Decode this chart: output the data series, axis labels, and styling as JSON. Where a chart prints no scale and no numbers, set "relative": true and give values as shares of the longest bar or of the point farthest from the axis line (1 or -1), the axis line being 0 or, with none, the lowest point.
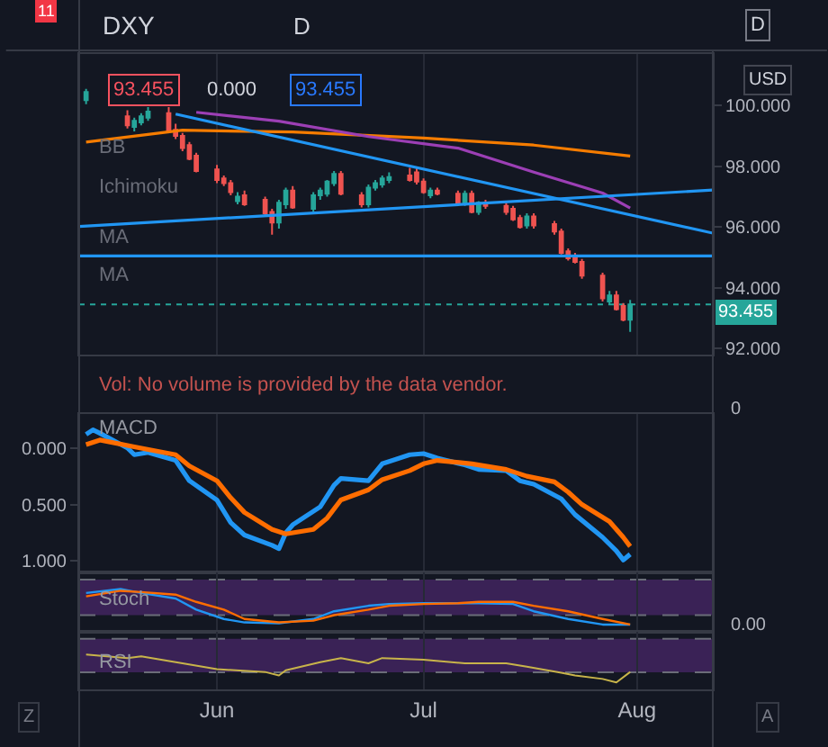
{
  "chart_data": [
    {
      "type": "candlestick",
      "title": "DXY",
      "ylabel": "USD",
      "x": [
        "--05-13",
        "--05-19",
        "--05-20",
        "--05-21",
        "--05-22",
        "--05-25",
        "--05-26",
        "--05-27",
        "--05-28",
        "--05-29",
        "--06-01",
        "--06-02",
        "--06-03",
        "--06-04",
        "--06-05",
        "--06-08",
        "--06-09",
        "--06-10",
        "--06-11",
        "--06-12",
        "--06-15",
        "--06-16",
        "--06-17",
        "--06-18",
        "--06-19",
        "--06-22",
        "--06-23",
        "--06-24",
        "--06-25",
        "--06-26",
        "--06-29",
        "--06-30",
        "--07-01",
        "--07-02",
        "--07-03",
        "--07-06",
        "--07-07",
        "--07-08",
        "--07-09",
        "--07-10",
        "--07-13",
        "--07-14",
        "--07-15",
        "--07-16",
        "--07-17",
        "--07-20",
        "--07-21",
        "--07-22",
        "--07-23",
        "--07-24",
        "--07-27",
        "--07-28",
        "--07-29",
        "--07-30",
        "--07-31"
      ],
      "ohlc": [
        [
          100.18,
          100.55,
          100.05,
          100.45
        ],
        [
          99.65,
          99.85,
          99.25,
          99.35
        ],
        [
          99.3,
          99.6,
          99.15,
          99.5
        ],
        [
          99.45,
          99.75,
          99.35,
          99.65
        ],
        [
          99.6,
          99.95,
          99.5,
          99.8
        ],
        [
          99.75,
          99.95,
          99.1,
          99.15
        ],
        [
          99.2,
          99.4,
          98.9,
          99.0
        ],
        [
          99.0,
          99.1,
          98.5,
          98.6
        ],
        [
          98.7,
          98.8,
          98.2,
          98.25
        ],
        [
          98.35,
          98.45,
          97.8,
          97.85
        ],
        [
          97.9,
          98.05,
          97.45,
          97.55
        ],
        [
          97.6,
          97.7,
          97.35,
          97.45
        ],
        [
          97.45,
          97.55,
          97.05,
          97.15
        ],
        [
          96.85,
          97.15,
          96.75,
          97.0
        ],
        [
          97.05,
          97.2,
          96.7,
          96.75
        ],
        [
          96.9,
          97.0,
          96.4,
          96.45
        ],
        [
          96.5,
          96.6,
          95.75,
          96.15
        ],
        [
          96.15,
          96.9,
          95.95,
          96.8
        ],
        [
          96.75,
          97.3,
          96.6,
          97.2
        ],
        [
          97.2,
          97.35,
          96.6,
          96.65
        ],
        [
          96.6,
          97.15,
          96.5,
          97.05
        ],
        [
          97.05,
          97.3,
          96.9,
          97.2
        ],
        [
          97.1,
          97.55,
          97.0,
          97.5
        ],
        [
          97.45,
          97.85,
          97.35,
          97.75
        ],
        [
          97.75,
          97.85,
          97.05,
          97.1
        ],
        [
          97.05,
          97.15,
          96.65,
          96.75
        ],
        [
          96.75,
          97.4,
          96.65,
          97.3
        ],
        [
          97.3,
          97.55,
          97.2,
          97.45
        ],
        [
          97.4,
          97.7,
          97.3,
          97.6
        ],
        [
          97.55,
          97.8,
          97.45,
          97.65
        ],
        [
          97.7,
          97.95,
          97.5,
          97.55
        ],
        [
          97.8,
          97.95,
          97.4,
          97.5
        ],
        [
          97.5,
          97.6,
          97.1,
          97.15
        ],
        [
          97.05,
          97.3,
          96.95,
          97.2
        ],
        [
          97.2,
          97.3,
          97.05,
          97.1
        ],
        [
          97.1,
          97.2,
          96.7,
          96.8
        ],
        [
          96.8,
          97.2,
          96.7,
          97.1
        ],
        [
          97.1,
          97.2,
          96.45,
          96.5
        ],
        [
          96.5,
          96.85,
          96.4,
          96.8
        ],
        [
          96.8,
          96.9,
          96.6,
          96.7
        ],
        [
          96.7,
          96.8,
          96.4,
          96.5
        ],
        [
          96.6,
          96.7,
          96.2,
          96.25
        ],
        [
          96.3,
          96.4,
          95.95,
          96.0
        ],
        [
          96.05,
          96.45,
          95.95,
          96.35
        ],
        [
          96.35,
          96.45,
          95.95,
          96.05
        ],
        [
          96.1,
          96.2,
          95.75,
          95.85
        ],
        [
          95.85,
          95.95,
          95.1,
          95.15
        ],
        [
          95.2,
          95.3,
          94.9,
          94.97
        ],
        [
          95.05,
          95.15,
          94.8,
          94.85
        ],
        [
          94.85,
          94.95,
          94.3,
          94.4
        ],
        [
          94.4,
          94.5,
          93.55,
          93.65
        ],
        [
          93.55,
          93.9,
          93.45,
          93.75
        ],
        [
          93.75,
          93.9,
          93.25,
          93.3
        ],
        [
          93.4,
          93.5,
          92.9,
          92.95
        ],
        [
          92.95,
          93.6,
          92.55,
          93.455
        ]
      ],
      "series": [
        {
          "type": "line",
          "color": "#f57c00",
          "x": [
            "--05-13",
            "--05-27",
            "--06-12",
            "--07-01",
            "--07-17",
            "--07-31"
          ],
          "values": [
            98.8,
            99.19,
            99.13,
            98.93,
            98.7,
            98.34
          ]
        },
        {
          "type": "line",
          "color": "#9c3fb5",
          "x": [
            "--05-29",
            "--06-10",
            "--06-23",
            "--07-06",
            "--07-17",
            "--07-27",
            "--07-31"
          ],
          "values": [
            99.78,
            99.49,
            98.98,
            98.6,
            97.81,
            97.12,
            96.63
          ]
        },
        {
          "type": "line",
          "color": "#2196f3",
          "x": [
            "--05-26",
            "--08-12"
          ],
          "values": [
            99.72,
            95.8
          ]
        },
        {
          "type": "line",
          "color": "#2196f3",
          "x": [
            "--05-12",
            "--08-12"
          ],
          "values": [
            96.02,
            97.22
          ]
        },
        {
          "type": "line",
          "color": "#2196f3",
          "x": [
            "--05-12",
            "--08-12"
          ],
          "values": [
            95.05,
            95.05
          ]
        }
      ],
      "xlim": [
        "--05-12",
        "--08-12"
      ],
      "xticks": [
        {
          "value": "--06-01",
          "label": "Jun"
        },
        {
          "value": "--07-01",
          "label": "Jul"
        },
        {
          "value": "--08-01",
          "label": "Aug"
        }
      ],
      "ylim": [
        91.8,
        101.7
      ],
      "yticks": [
        {
          "value": 100,
          "label": "100.000"
        },
        {
          "value": 98,
          "label": "98.000"
        },
        {
          "value": 96,
          "label": "96.000"
        },
        {
          "value": 94,
          "label": "94.000"
        },
        {
          "value": 92,
          "label": "92.000"
        }
      ],
      "ref_lines": [
        {
          "axis": "y",
          "value": 93.455,
          "label": "93.455",
          "color": "#26a69a",
          "line_style": "dotted"
        }
      ],
      "annotations": [
        "11",
        "D",
        "D",
        "93.455",
        "0.000",
        "93.455",
        "BB",
        "Ichimoku",
        "MA",
        "MA"
      ],
      "grid": "x",
      "tick_labels": "y"
    },
    {
      "type": "other",
      "annotations": [
        "Vol: No volume is provided by the data vendor.",
        "0"
      ]
    },
    {
      "type": "line",
      "title": "MACD",
      "series": [
        {
          "color": "#2196f3",
          "x": [
            "--05-13",
            "--05-14",
            "--05-15",
            "--05-19",
            "--05-20",
            "--05-22",
            "--05-26",
            "--05-28",
            "--06-01",
            "--06-03",
            "--06-05",
            "--06-09",
            "--06-10",
            "--06-11",
            "--06-12",
            "--06-16",
            "--06-18",
            "--06-19",
            "--06-23",
            "--06-25",
            "--06-29",
            "--07-01",
            "--07-03",
            "--07-07",
            "--07-09",
            "--07-13",
            "--07-15",
            "--07-17",
            "--07-21",
            "--07-23",
            "--07-27",
            "--07-29",
            "--07-30",
            "--07-31"
          ],
          "values": [
            0.12,
            0.16,
            0.13,
            0.0,
            -0.06,
            -0.04,
            -0.11,
            -0.29,
            -0.46,
            -0.66,
            -0.77,
            -0.86,
            -0.89,
            -0.75,
            -0.68,
            -0.52,
            -0.33,
            -0.27,
            -0.29,
            -0.14,
            -0.06,
            -0.05,
            -0.09,
            -0.15,
            -0.19,
            -0.2,
            -0.29,
            -0.32,
            -0.45,
            -0.59,
            -0.79,
            -0.91,
            -0.99,
            -0.94
          ]
        },
        {
          "color": "#ff6d00",
          "x": [
            "--05-13",
            "--05-15",
            "--05-20",
            "--05-26",
            "--05-28",
            "--06-01",
            "--06-03",
            "--06-05",
            "--06-09",
            "--06-11",
            "--06-15",
            "--06-17",
            "--06-19",
            "--06-23",
            "--06-25",
            "--06-29",
            "--07-01",
            "--07-03",
            "--07-08",
            "--07-13",
            "--07-16",
            "--07-20",
            "--07-22",
            "--07-24",
            "--07-28",
            "--07-30",
            "--07-31"
          ],
          "values": [
            0.03,
            0.07,
            0.01,
            -0.06,
            -0.16,
            -0.29,
            -0.44,
            -0.57,
            -0.72,
            -0.76,
            -0.72,
            -0.62,
            -0.46,
            -0.37,
            -0.28,
            -0.2,
            -0.14,
            -0.11,
            -0.14,
            -0.19,
            -0.25,
            -0.3,
            -0.39,
            -0.5,
            -0.65,
            -0.79,
            -0.87
          ]
        }
      ],
      "xlim": [
        "--05-12",
        "--08-12"
      ],
      "xticks": [
        {
          "value": "--06-01",
          "label": "Jun"
        },
        {
          "value": "--07-01",
          "label": "Jul"
        },
        {
          "value": "--08-01",
          "label": "Aug"
        }
      ],
      "ylim": [
        -1.1,
        0.3
      ],
      "yticks": [
        {
          "value": 0,
          "label": "0.000"
        },
        {
          "value": -0.5,
          "label": "0.500"
        },
        {
          "value": -1,
          "label": "1.000"
        }
      ],
      "grid": "x",
      "tick_labels": "y"
    },
    {
      "type": "line",
      "title": "Stoch",
      "relative": true,
      "series": [
        {
          "color": "#2196f3",
          "x": [
            "--05-13",
            "--05-18",
            "--05-21",
            "--05-26",
            "--05-29",
            "--06-02",
            "--06-05",
            "--06-10",
            "--06-15",
            "--06-18",
            "--06-23",
            "--06-26",
            "--07-01",
            "--07-06",
            "--07-09",
            "--07-14",
            "--07-17",
            "--07-22",
            "--07-27",
            "--07-31"
          ],
          "values": [
            0.91,
            1.0,
            0.91,
            0.78,
            0.52,
            0.3,
            0.22,
            0.2,
            0.3,
            0.48,
            0.61,
            0.65,
            0.67,
            0.67,
            0.67,
            0.65,
            0.48,
            0.3,
            0.17,
            0.17
          ]
        },
        {
          "color": "#ff6d00",
          "x": [
            "--05-13",
            "--05-18",
            "--05-21",
            "--05-26",
            "--05-29",
            "--06-02",
            "--06-05",
            "--06-10",
            "--06-15",
            "--06-18",
            "--06-23",
            "--06-26",
            "--07-01",
            "--07-06",
            "--07-09",
            "--07-14",
            "--07-17",
            "--07-22",
            "--07-27",
            "--07-31"
          ],
          "values": [
            0.83,
            0.96,
            0.93,
            0.87,
            0.7,
            0.52,
            0.3,
            0.22,
            0.26,
            0.39,
            0.52,
            0.61,
            0.65,
            0.67,
            0.7,
            0.7,
            0.61,
            0.48,
            0.3,
            0.17
          ]
        }
      ],
      "bands": [
        {
          "axis": "y",
          "from": 0.39,
          "to": 1.22,
          "color": "#3a2256"
        }
      ],
      "ref_lines": [
        {
          "axis": "y",
          "value": 0.39,
          "color": "#6a6d78",
          "line_style": "dashed"
        },
        {
          "axis": "y",
          "value": 1.22,
          "color": "#6a6d78",
          "line_style": "dashed"
        }
      ],
      "annotations": [
        "0.00"
      ],
      "xlim": [
        "--05-12",
        "--08-12"
      ],
      "xticks": [
        {
          "value": "--06-01",
          "label": "Jun"
        },
        {
          "value": "--07-01",
          "label": "Jul"
        },
        {
          "value": "--08-01",
          "label": "Aug"
        }
      ],
      "grid": "x",
      "tick_labels": false
    },
    {
      "type": "line",
      "title": "RSI",
      "relative": true,
      "series": [
        {
          "color": "#c8b44a",
          "x": [
            "--05-13",
            "--05-19",
            "--05-21",
            "--05-27",
            "--06-01",
            "--06-08",
            "--06-10",
            "--06-11",
            "--06-16",
            "--06-19",
            "--06-23",
            "--06-25",
            "--07-01",
            "--07-07",
            "--07-13",
            "--07-16",
            "--07-21",
            "--07-23",
            "--07-27",
            "--07-29",
            "--07-31"
          ],
          "values": [
            1.0,
            0.9,
            0.95,
            0.75,
            0.58,
            0.5,
            0.4,
            0.55,
            0.78,
            0.9,
            0.75,
            0.9,
            0.85,
            0.75,
            0.75,
            0.65,
            0.48,
            0.4,
            0.3,
            0.2,
            0.5
          ]
        }
      ],
      "bands": [
        {
          "axis": "y",
          "from": 0.49,
          "to": 1.45,
          "color": "#3a2256"
        }
      ],
      "ref_lines": [
        {
          "axis": "y",
          "value": 0.49,
          "color": "#6a6d78",
          "line_style": "dashed"
        },
        {
          "axis": "y",
          "value": 1.45,
          "color": "#6a6d78",
          "line_style": "dashed"
        }
      ],
      "annotations": [
        "Z",
        "A"
      ],
      "xlim": [
        "--05-12",
        "--08-12"
      ],
      "xticks": [
        {
          "value": "--06-01",
          "label": "Jun"
        },
        {
          "value": "--07-01",
          "label": "Jul"
        },
        {
          "value": "--08-01",
          "label": "Aug"
        }
      ],
      "grid": "x",
      "tick_labels": "x"
    }
  ]
}
